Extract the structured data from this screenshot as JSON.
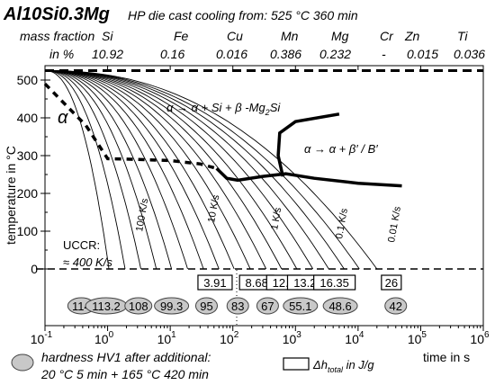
{
  "header": {
    "alloy": "AlSi0.3Mg",
    "alloy_parts": [
      "Al10Si0.3Mg"
    ],
    "subtitle": "HP die cast  cooling from: 525 °C 360 min",
    "row1_label": "mass fraction",
    "row2_label": "in %",
    "elements": [
      "Si",
      "Fe",
      "Cu",
      "Mn",
      "Mg",
      "Cr",
      "Zn",
      "Ti"
    ],
    "values": [
      "10.92",
      "0.16",
      "0.016",
      "0.386",
      "0.232",
      "-",
      "0.015",
      "0.036"
    ]
  },
  "legend": {
    "hardness_line1": "hardness HV1 after additional:",
    "hardness_line2": "20 °C 5 min + 165 °C 420 min",
    "enthalpy_label": "Δh",
    "enthalpy_sub": "total",
    "enthalpy_unit": " in J/g"
  },
  "chart_data": {
    "type": "line",
    "xscale": "log",
    "xlim": [
      0.1,
      1000000
    ],
    "ylim": [
      0,
      530
    ],
    "xlabel": "time in s",
    "ylabel": "temperature in °C",
    "x_ticks": [
      "10-1",
      "100",
      "101",
      "102",
      "103",
      "104",
      "105",
      "106"
    ],
    "x_tick_base": [
      "10",
      "10",
      "10",
      "10",
      "10",
      "10",
      "10",
      "10"
    ],
    "x_tick_exp": [
      "-1",
      "0",
      "1",
      "2",
      "3",
      "4",
      "5",
      "6"
    ],
    "y_ticks": [
      "0",
      "100",
      "200",
      "300",
      "400",
      "500"
    ],
    "solution_temp": 525,
    "phase_labels": {
      "alpha": "α",
      "upper": "α → α + Si + β -Mg2Si",
      "upper_parts": [
        "α → α + Si + β -Mg",
        "2",
        "Si"
      ],
      "lower": "α → α + β′ / B′"
    },
    "uccr_line1": "UCCR:",
    "uccr_line2": "≈ 400 K/s",
    "cooling_rate_labels": [
      "100 K/s",
      "10 K/s",
      "1 K/s",
      "0.1 K/s",
      "0.01 K/s"
    ],
    "cooling_curve_end_times": [
      1.05,
      1.9,
      3.4,
      6,
      10.5,
      19,
      34,
      60,
      105,
      190,
      340,
      600,
      1050,
      1900,
      3400,
      6000,
      10500,
      20000
    ],
    "dashed_alpha_boundary": [
      [
        0.1,
        490
      ],
      [
        0.45,
        380
      ],
      [
        1.0,
        292
      ],
      [
        3,
        290
      ],
      [
        10,
        287
      ],
      [
        30,
        278
      ],
      [
        55,
        266
      ]
    ],
    "precipitation_curve_bottom": [
      [
        55,
        266
      ],
      [
        80,
        240
      ],
      [
        120,
        235
      ],
      [
        300,
        245
      ],
      [
        700,
        252
      ],
      [
        2000,
        240
      ],
      [
        10000,
        227
      ],
      [
        50000,
        220
      ]
    ],
    "precipitation_curve_upper": [
      [
        630,
        245
      ],
      [
        530,
        300
      ],
      [
        560,
        360
      ],
      [
        1000,
        390
      ],
      [
        5000,
        410
      ]
    ],
    "enthalpy_values": [
      "3.91",
      "8.68",
      "12.2",
      "13.24",
      "16.35",
      "26"
    ],
    "enthalpy_times": [
      52,
      240,
      650,
      1600,
      4200,
      34000
    ],
    "hardness_values": [
      "114",
      "113.2",
      "108",
      "99.3",
      "95",
      "83",
      "67",
      "55.1",
      "48.6",
      "42"
    ],
    "hardness_times": [
      0.38,
      0.95,
      3.1,
      10.5,
      38,
      120,
      360,
      1200,
      5200,
      40000
    ]
  }
}
